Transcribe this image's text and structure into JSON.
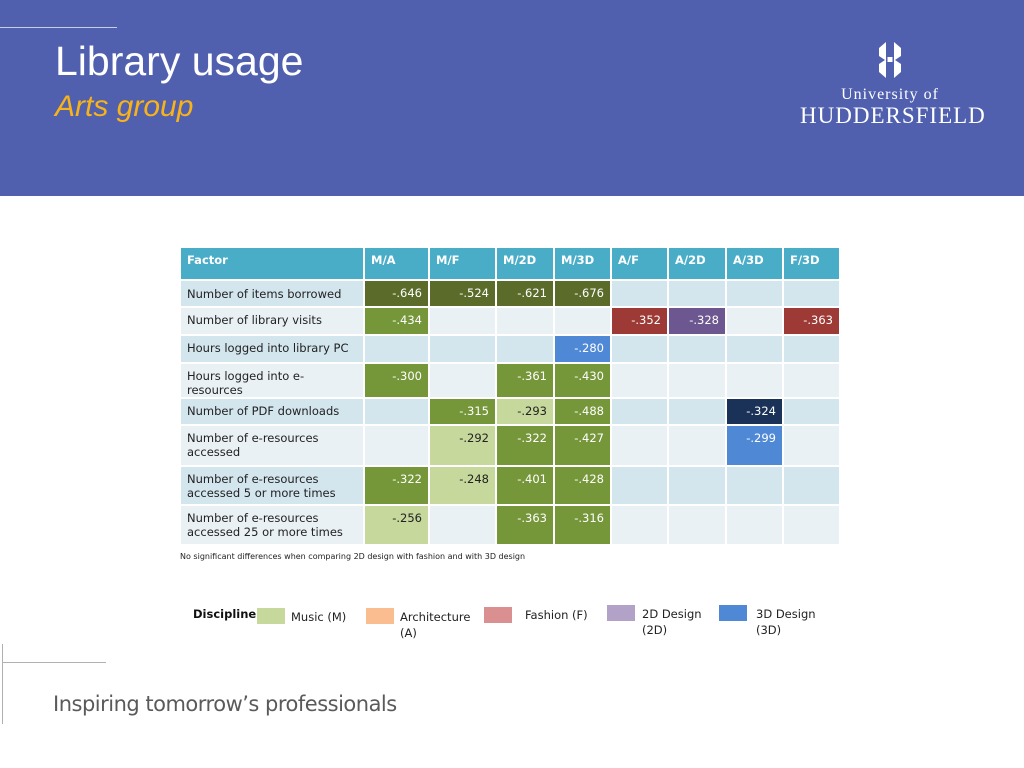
{
  "header": {
    "title": "Library usage",
    "subtitle": "Arts group",
    "logo_line1": "University of",
    "logo_line2": "HUDDERSFIELD"
  },
  "table": {
    "headers": [
      "Factor",
      "M/A",
      "M/F",
      "M/2D",
      "M/3D",
      "A/F",
      "A/2D",
      "A/3D",
      "F/3D"
    ],
    "rows": [
      {
        "factor": "Number of items borrowed",
        "values": [
          "-.646",
          "-.524",
          "-.621",
          "-.676",
          "",
          "",
          "",
          ""
        ]
      },
      {
        "factor": "Number of library visits",
        "values": [
          "-.434",
          "",
          "",
          "",
          "-.352",
          "-.328",
          "",
          "-.363"
        ]
      },
      {
        "factor": "Hours logged into library PC",
        "values": [
          "",
          "",
          "",
          "-.280",
          "",
          "",
          "",
          ""
        ]
      },
      {
        "factor": "Hours logged into e-resources",
        "values": [
          "-.300",
          "",
          "-.361",
          "-.430",
          "",
          "",
          "",
          ""
        ]
      },
      {
        "factor": "Number of PDF downloads",
        "values": [
          "",
          "-.315",
          "-.293",
          "-.488",
          "",
          "",
          "-.324",
          ""
        ]
      },
      {
        "factor": "Number of e-resources accessed",
        "values": [
          "",
          "-.292",
          "-.322",
          "-.427",
          "",
          "",
          "-.299",
          ""
        ]
      },
      {
        "factor": "Number of e-resources accessed 5 or more times",
        "values": [
          "-.322",
          "-.248",
          "-.401",
          "-.428",
          "",
          "",
          "",
          ""
        ]
      },
      {
        "factor": "Number of e-resources accessed 25 or more times",
        "values": [
          "-.256",
          "",
          "-.363",
          "-.316",
          "",
          "",
          "",
          ""
        ]
      }
    ]
  },
  "note": "No significant differences when comparing 2D design with fashion and with 3D design",
  "legend": {
    "title": "Discipline",
    "items": [
      {
        "label": "Music (M)",
        "color": "#c6d89c"
      },
      {
        "label": "Architecture (A)",
        "color": "#f9bd8f"
      },
      {
        "label": "Fashion (F)",
        "color": "#da9090"
      },
      {
        "label": "2D Design (2D)",
        "color": "#b3a2c8"
      },
      {
        "label": "3D Design (3D)",
        "color": "#4f89d6"
      }
    ]
  },
  "footer": {
    "tagline": "Inspiring tomorrow’s professionals"
  },
  "colors": {
    "header_bg": "#5060ae",
    "subtitle": "#f8b31a",
    "table_header": "#4aadc8"
  }
}
